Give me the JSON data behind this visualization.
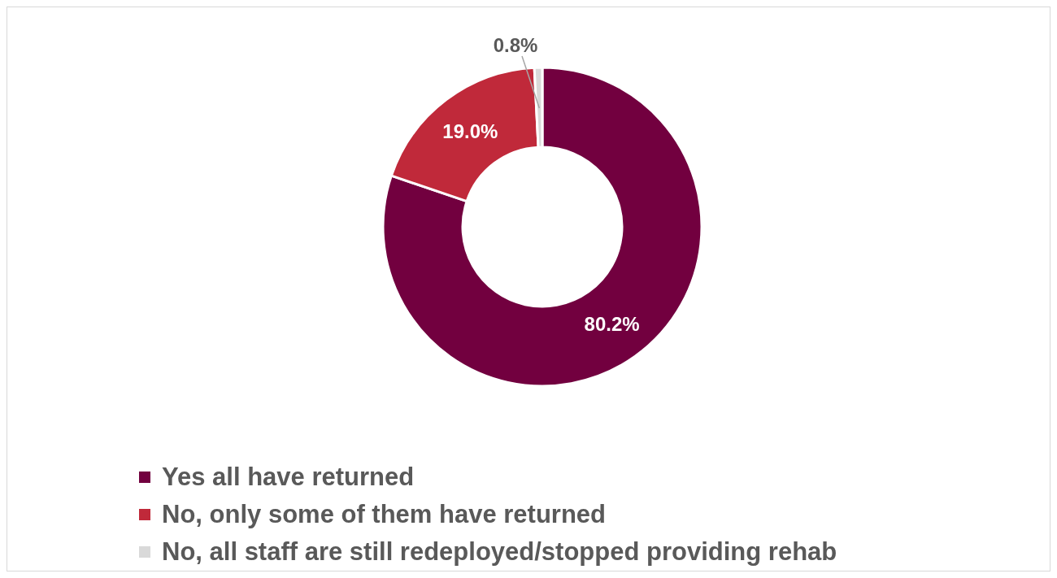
{
  "chart_data": {
    "type": "donut",
    "categories": [
      "Yes all have returned",
      "No, only some of them have returned",
      "No, all staff are still redeployed/stopped providing rehab"
    ],
    "values": [
      80.2,
      19.0,
      0.8
    ],
    "value_labels": [
      "80.2%",
      "19.0%",
      "0.8%"
    ],
    "colors": [
      "#72003f",
      "#c0293a",
      "#d9d9d9"
    ],
    "legend": "bottom"
  }
}
